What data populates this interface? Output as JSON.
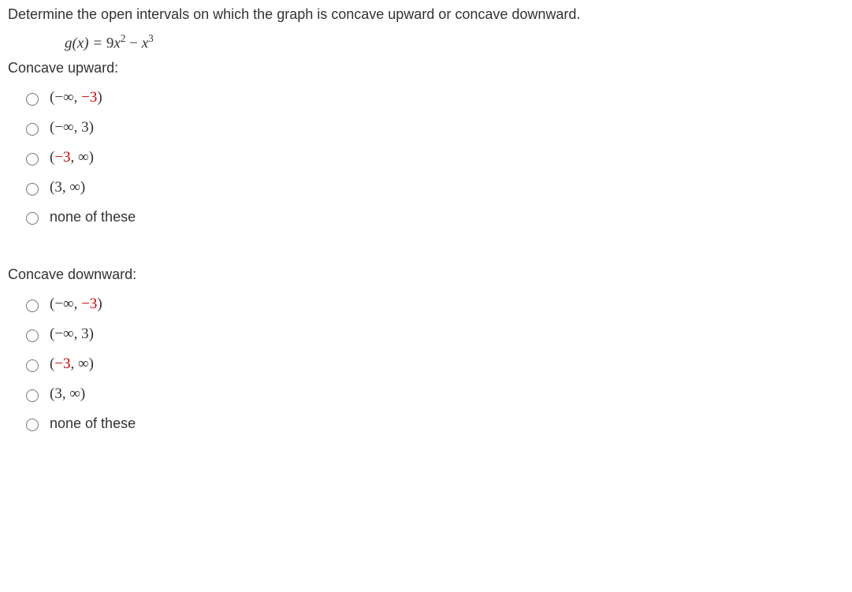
{
  "question": "Determine the open intervals on which the graph is concave upward or concave downward.",
  "equation": {
    "lhs_func": "g",
    "lhs_var": "x",
    "eq": " = ",
    "t1_coef": "9",
    "t1_var": "x",
    "t1_exp": "2",
    "minus": " − ",
    "t2_var": "x",
    "t2_exp": "3"
  },
  "upward": {
    "label": "Concave upward:",
    "options": [
      {
        "open": "(",
        "a1": "−∞",
        "comma": ", ",
        "a2": "−3",
        "close": ")",
        "hl": "a2"
      },
      {
        "open": "(",
        "a1": "−∞",
        "comma": ", ",
        "a2": "3",
        "close": ")",
        "hl": ""
      },
      {
        "open": "(",
        "a1": "−3",
        "comma": ", ",
        "a2": "∞",
        "close": ")",
        "hl": "a1"
      },
      {
        "open": "(",
        "a1": "3",
        "comma": ", ",
        "a2": "∞",
        "close": ")",
        "hl": ""
      },
      {
        "plain": "none of these"
      }
    ]
  },
  "downward": {
    "label": "Concave downward:",
    "options": [
      {
        "open": "(",
        "a1": "−∞",
        "comma": ", ",
        "a2": "−3",
        "close": ")",
        "hl": "a2"
      },
      {
        "open": "(",
        "a1": "−∞",
        "comma": ", ",
        "a2": "3",
        "close": ")",
        "hl": ""
      },
      {
        "open": "(",
        "a1": "−3",
        "comma": ", ",
        "a2": "∞",
        "close": ")",
        "hl": "a1"
      },
      {
        "open": "(",
        "a1": "3",
        "comma": ", ",
        "a2": "∞",
        "close": ")",
        "hl": ""
      },
      {
        "plain": "none of these"
      }
    ]
  }
}
